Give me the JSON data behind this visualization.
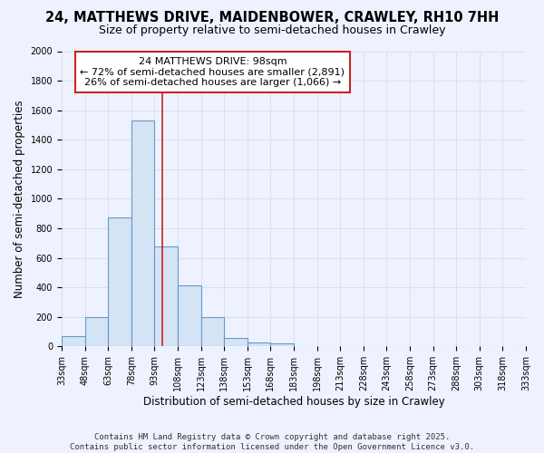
{
  "title": "24, MATTHEWS DRIVE, MAIDENBOWER, CRAWLEY, RH10 7HH",
  "subtitle": "Size of property relative to semi-detached houses in Crawley",
  "xlabel": "Distribution of semi-detached houses by size in Crawley",
  "ylabel": "Number of semi-detached properties",
  "footer_line1": "Contains HM Land Registry data © Crown copyright and database right 2025.",
  "footer_line2": "Contains public sector information licensed under the Open Government Licence v3.0.",
  "bin_edges": [
    33,
    48,
    63,
    78,
    93,
    108,
    123,
    138,
    153,
    168,
    183,
    198,
    213,
    228,
    243,
    258,
    273,
    288,
    303,
    318,
    333
  ],
  "bar_heights": [
    70,
    200,
    875,
    1530,
    680,
    415,
    200,
    60,
    25,
    20,
    5,
    0,
    0,
    0,
    0,
    0,
    0,
    0,
    0,
    0
  ],
  "bar_color": "#d4e4f4",
  "bar_edge_color": "#6699cc",
  "property_size": 98,
  "red_line_color": "#cc2222",
  "annotation_line1": "24 MATTHEWS DRIVE: 98sqm",
  "annotation_line2": "← 72% of semi-detached houses are smaller (2,891)",
  "annotation_line3": "26% of semi-detached houses are larger (1,066) →",
  "annotation_box_color": "#ffffff",
  "annotation_box_edge_color": "#cc2222",
  "ylim": [
    0,
    2000
  ],
  "yticks": [
    0,
    200,
    400,
    600,
    800,
    1000,
    1200,
    1400,
    1600,
    1800,
    2000
  ],
  "bg_color": "#eef2ff",
  "grid_color": "#d8dff0",
  "title_fontsize": 10.5,
  "subtitle_fontsize": 9,
  "axis_label_fontsize": 8.5,
  "tick_fontsize": 7,
  "annotation_fontsize": 8,
  "footer_fontsize": 6.5
}
